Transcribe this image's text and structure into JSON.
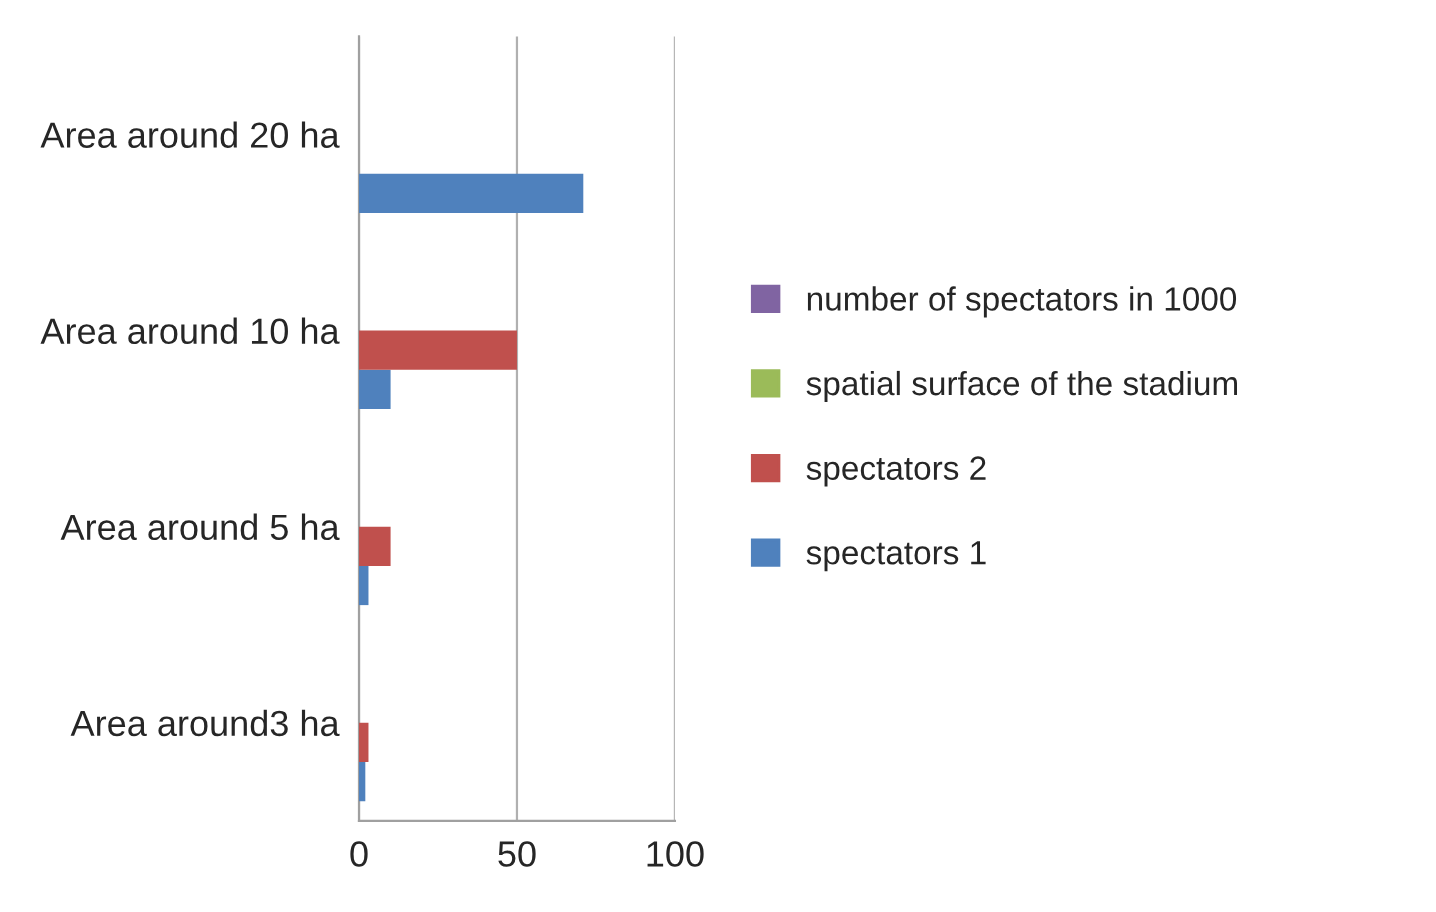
{
  "chart_data": {
    "type": "bar",
    "orientation": "horizontal",
    "categories": [
      "Area around 20 ha",
      "Area around 10 ha",
      "Area around 5 ha",
      "Area around3 ha"
    ],
    "series": [
      {
        "name": "spectators 1",
        "color": "#4f81bd",
        "values": [
          71,
          10,
          3,
          2
        ]
      },
      {
        "name": "spectators 2",
        "color": "#c0504d",
        "values": [
          null,
          50,
          10,
          3
        ]
      },
      {
        "name": "spatial surface of the stadium",
        "color": "#9bbb59",
        "values": [
          null,
          null,
          null,
          null
        ]
      },
      {
        "name": "number of spectators in 1000",
        "color": "#8064a2",
        "values": [
          null,
          null,
          null,
          null
        ]
      }
    ],
    "xlim": [
      0,
      100
    ],
    "xticks": [
      0,
      50,
      100
    ],
    "grid": "x",
    "legend": "right"
  }
}
